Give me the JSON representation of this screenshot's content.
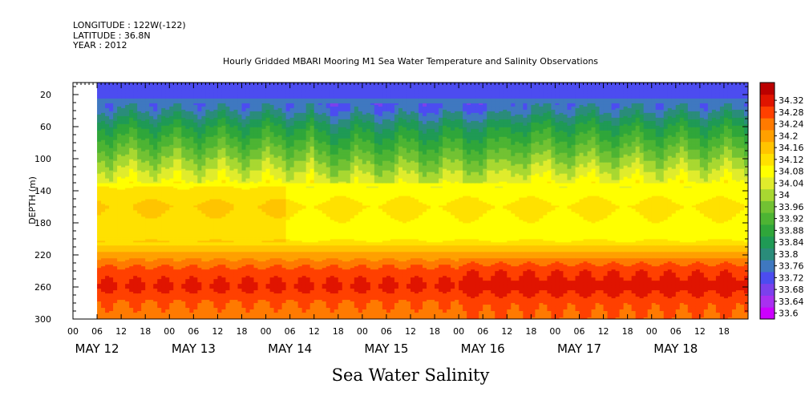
{
  "header_lines": [
    "LONGITUDE : 122W(-122)",
    "LATITUDE : 36.8N",
    "YEAR : 2012"
  ],
  "caption": "Sea Water Salinity",
  "chart_data": {
    "type": "heatmap",
    "title": "Hourly Gridded MBARI Mooring M1 Sea Water Temperature and Salinity Observations",
    "xlabel": "",
    "ylabel": "DEPTH (m)",
    "x_hour_ticks": [
      "00",
      "06",
      "12",
      "18",
      "00",
      "06",
      "12",
      "18",
      "00",
      "06",
      "12",
      "18",
      "00",
      "06",
      "12",
      "18",
      "00",
      "06",
      "12",
      "18",
      "00",
      "06",
      "12",
      "18",
      "00",
      "06",
      "12",
      "18"
    ],
    "x_day_labels": [
      "MAY 12",
      "MAY 13",
      "MAY 14",
      "MAY 15",
      "MAY 16",
      "MAY 17",
      "MAY 18"
    ],
    "x_range_hours": [
      0,
      168
    ],
    "data_start_hour": 6,
    "y_ticks": [
      20,
      60,
      100,
      140,
      180,
      220,
      260,
      300
    ],
    "ylim": [
      300,
      5
    ],
    "colorbar": {
      "values": [
        33.6,
        33.64,
        33.68,
        33.72,
        33.76,
        33.8,
        33.84,
        33.88,
        33.92,
        33.96,
        34,
        34.04,
        34.08,
        34.12,
        34.16,
        34.2,
        34.24,
        34.28,
        34.32
      ],
      "labels": [
        "33.6",
        "33.64",
        "33.68",
        "33.72",
        "33.76",
        "33.8",
        "33.84",
        "33.88",
        "33.92",
        "33.96",
        "34",
        "34.04",
        "34.08",
        "34.12",
        "34.16",
        "34.2",
        "34.24",
        "34.28",
        "34.32"
      ],
      "colors": [
        "#cc00ff",
        "#a930f0",
        "#7c40ec",
        "#4c4cf0",
        "#3f78c0",
        "#2a8c7a",
        "#1f9a55",
        "#2fa63a",
        "#4db433",
        "#72c233",
        "#a8d831",
        "#e0ec2c",
        "#ffff00",
        "#ffe100",
        "#ffc400",
        "#ffa000",
        "#ff7a00",
        "#ff4000",
        "#e01400",
        "#bb0000"
      ]
    },
    "depth_profile": [
      {
        "depth": 5,
        "value": 33.7
      },
      {
        "depth": 20,
        "value": 33.71
      },
      {
        "depth": 40,
        "value": 33.76
      },
      {
        "depth": 60,
        "value": 33.84
      },
      {
        "depth": 80,
        "value": 33.9
      },
      {
        "depth": 100,
        "value": 33.96
      },
      {
        "depth": 120,
        "value": 34.02
      },
      {
        "depth": 140,
        "value": 34.07
      },
      {
        "depth": 160,
        "value": 34.1
      },
      {
        "depth": 180,
        "value": 34.08
      },
      {
        "depth": 200,
        "value": 34.08
      },
      {
        "depth": 220,
        "value": 34.18
      },
      {
        "depth": 240,
        "value": 34.26
      },
      {
        "depth": 260,
        "value": 34.29
      },
      {
        "depth": 280,
        "value": 34.24
      },
      {
        "depth": 300,
        "value": 34.22
      }
    ]
  }
}
